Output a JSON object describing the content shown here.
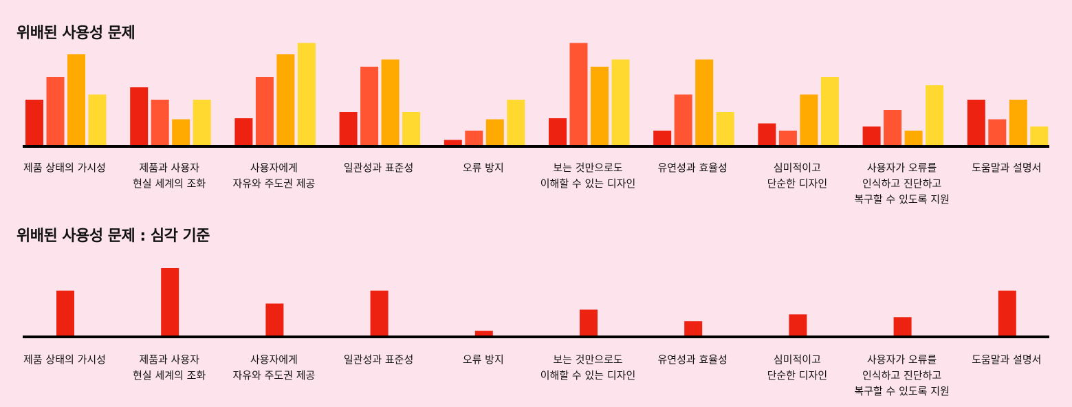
{
  "chart_data": [
    {
      "type": "bar",
      "title": "위배된 사용성 문제",
      "categories": [
        "제품 상태의 가시성",
        "제품과 사용자\n현실 세계의 조화",
        "사용자에게\n자유와 주도권 제공",
        "일관성과 표준성",
        "오류 방지",
        "보는 것만으로도\n이해할 수 있는 디자인",
        "유연성과 효율성",
        "심미적이고\n단순한 디자인",
        "사용자가 오류를\n인식하고 진단하고\n복구할 수 있도록 지원",
        "도움말과 설명서"
      ],
      "series": [
        {
          "values": [
            4.4,
            5.6,
            2.6,
            3.2,
            0.5,
            2.6,
            1.4,
            2.1,
            1.8,
            4.4
          ],
          "color": "#ee2211"
        },
        {
          "values": [
            6.6,
            4.4,
            6.6,
            7.6,
            1.4,
            9.9,
            4.9,
            1.4,
            3.4,
            2.5
          ],
          "color": "#ff5533"
        },
        {
          "values": [
            8.8,
            2.5,
            8.8,
            8.3,
            2.5,
            7.6,
            8.3,
            4.9,
            1.4,
            4.4
          ],
          "color": "#ffaa00"
        },
        {
          "values": [
            4.9,
            4.4,
            9.9,
            3.2,
            4.4,
            8.3,
            3.2,
            6.6,
            5.8,
            1.8
          ],
          "color": "#ffd92f"
        }
      ],
      "ylim": [
        0,
        10
      ]
    },
    {
      "type": "bar",
      "title": "위배된 사용성 문제 : 심각 기준",
      "categories": [
        "제품 상태의 가시성",
        "제품과 사용자\n현실 세계의 조화",
        "사용자에게\n자유와 주도권 제공",
        "일관성과 표준성",
        "오류 방지",
        "보는 것만으로도\n이해할 수 있는 디자인",
        "유연성과 효율성",
        "심미적이고\n단순한 디자인",
        "사용자가 오류를\n인식하고 진단하고\n복구할 수 있도록 지원",
        "도움말과 설명서"
      ],
      "series": [
        {
          "values": [
            6.6,
            9.9,
            4.7,
            6.6,
            0.7,
            3.8,
            2.1,
            3.1,
            2.7,
            6.6
          ],
          "color": "#ee2211"
        }
      ],
      "ylim": [
        0,
        10
      ]
    }
  ]
}
